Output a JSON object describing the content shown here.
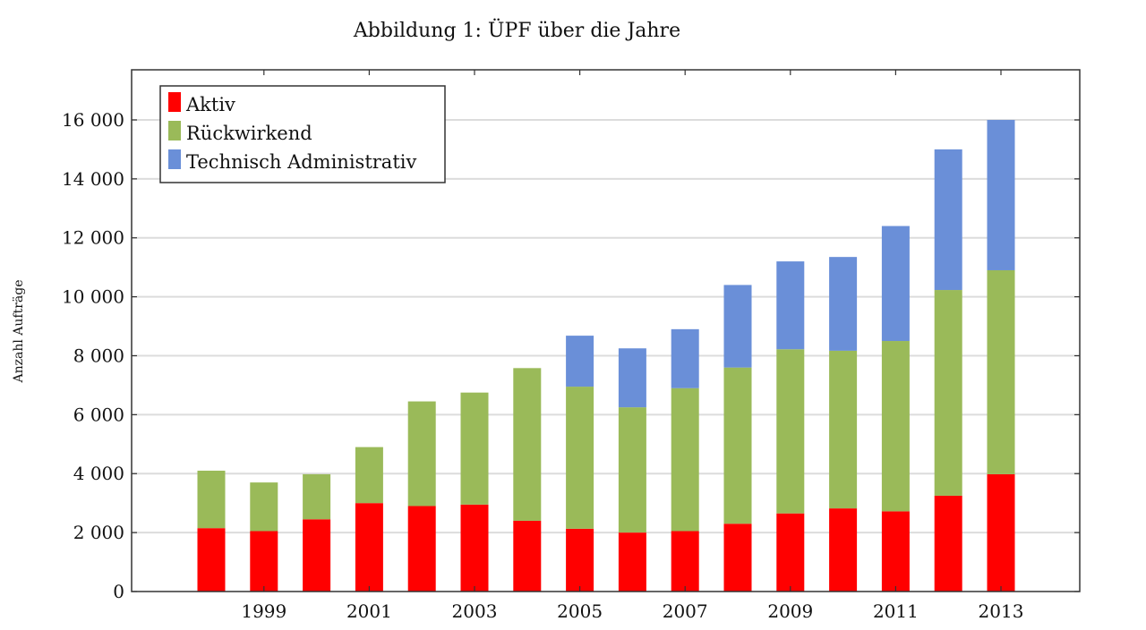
{
  "chart_data": {
    "type": "bar",
    "stacked": true,
    "title": "Abbildung 1: ÜPF über die Jahre",
    "xlabel": "",
    "ylabel": "Anzahl Aufträge",
    "categories": [
      "1998",
      "1999",
      "2000",
      "2001",
      "2002",
      "2003",
      "2004",
      "2005",
      "2006",
      "2007",
      "2008",
      "2009",
      "2010",
      "2011",
      "2012",
      "2013"
    ],
    "x_tick_labels": [
      "1999",
      "2001",
      "2003",
      "2005",
      "2007",
      "2009",
      "2011",
      "2013"
    ],
    "y_ticks": [
      0,
      2000,
      4000,
      6000,
      8000,
      10000,
      12000,
      14000,
      16000
    ],
    "y_tick_labels": [
      "0",
      "2 000",
      "4 000",
      "6 000",
      "8 000",
      "10 000",
      "12 000",
      "14 000",
      "16 000"
    ],
    "ylim": [
      0,
      17700
    ],
    "grid": "horizontal",
    "legend_position": "top-left",
    "series": [
      {
        "name": "Aktiv",
        "color": "#ff0000",
        "values": [
          2150,
          2050,
          2450,
          3000,
          2900,
          2950,
          2400,
          2130,
          2000,
          2050,
          2300,
          2650,
          2820,
          2720,
          3250,
          3980
        ]
      },
      {
        "name": "Rückwirkend",
        "color": "#9aba59",
        "values": [
          1950,
          1650,
          1530,
          1900,
          3550,
          3800,
          5180,
          4820,
          4250,
          4850,
          5300,
          5570,
          5350,
          5780,
          6980,
          6920
        ]
      },
      {
        "name": "Technisch Administrativ",
        "color": "#6a8fd8",
        "values": [
          0,
          0,
          0,
          0,
          0,
          0,
          0,
          1730,
          2000,
          2000,
          2800,
          2980,
          3180,
          3900,
          4770,
          5100
        ]
      }
    ]
  }
}
